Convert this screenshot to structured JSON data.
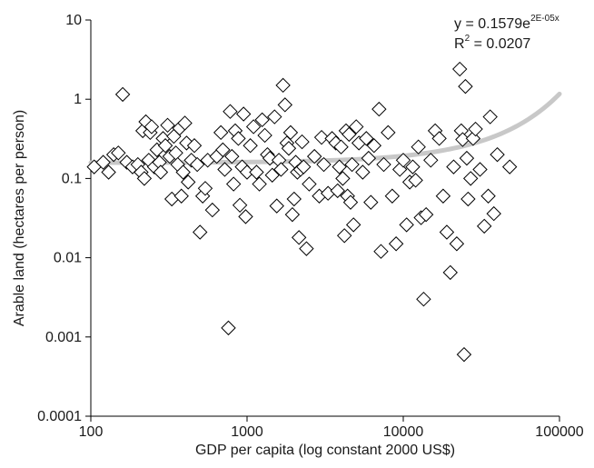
{
  "chart_data": {
    "type": "scatter",
    "title": "",
    "xlabel": "GDP per capita (log constant 2000 US$)",
    "ylabel": "Arable land (hectares per person)",
    "xscale": "log",
    "yscale": "log",
    "xlim": [
      100,
      100000
    ],
    "ylim": [
      0.0001,
      10
    ],
    "grid": false,
    "legend": "none",
    "x_ticks": [
      100,
      1000,
      10000,
      100000
    ],
    "x_tick_labels": [
      "100",
      "1000",
      "10000",
      "100000"
    ],
    "y_ticks": [
      0.0001,
      0.001,
      0.01,
      0.1,
      1,
      10
    ],
    "y_tick_labels": [
      "0.0001",
      "0.001",
      "0.01",
      "0.1",
      "1",
      "10"
    ],
    "annotation": {
      "equation_prefix": "y = 0.1579e",
      "equation_exponent": "2E-05x",
      "r2_prefix": "R",
      "r2_exponent": "2",
      "r2_suffix": " = 0.0207"
    },
    "trendline": {
      "a": 0.1579,
      "b": 2e-05,
      "color": "#c8c8c8"
    },
    "marker": {
      "shape": "diamond",
      "fill": "#ffffff",
      "stroke": "#000000"
    },
    "points": [
      [
        105,
        0.14
      ],
      [
        120,
        0.16
      ],
      [
        130,
        0.12
      ],
      [
        140,
        0.2
      ],
      [
        150,
        0.21
      ],
      [
        160,
        1.15
      ],
      [
        170,
        0.16
      ],
      [
        185,
        0.14
      ],
      [
        200,
        0.15
      ],
      [
        210,
        0.12
      ],
      [
        215,
        0.4
      ],
      [
        220,
        0.1
      ],
      [
        225,
        0.52
      ],
      [
        235,
        0.17
      ],
      [
        240,
        0.38
      ],
      [
        245,
        0.45
      ],
      [
        255,
        0.14
      ],
      [
        265,
        0.23
      ],
      [
        275,
        0.16
      ],
      [
        280,
        0.12
      ],
      [
        290,
        0.32
      ],
      [
        300,
        0.26
      ],
      [
        310,
        0.47
      ],
      [
        320,
        0.19
      ],
      [
        330,
        0.055
      ],
      [
        340,
        0.34
      ],
      [
        350,
        0.21
      ],
      [
        360,
        0.15
      ],
      [
        370,
        0.43
      ],
      [
        380,
        0.06
      ],
      [
        390,
        0.12
      ],
      [
        400,
        0.5
      ],
      [
        410,
        0.28
      ],
      [
        420,
        0.09
      ],
      [
        440,
        0.17
      ],
      [
        460,
        0.26
      ],
      [
        480,
        0.15
      ],
      [
        500,
        0.021
      ],
      [
        520,
        0.06
      ],
      [
        540,
        0.075
      ],
      [
        560,
        0.17
      ],
      [
        600,
        0.04
      ],
      [
        640,
        0.19
      ],
      [
        680,
        0.38
      ],
      [
        700,
        0.23
      ],
      [
        720,
        0.13
      ],
      [
        760,
        0.0013
      ],
      [
        780,
        0.7
      ],
      [
        800,
        0.19
      ],
      [
        820,
        0.085
      ],
      [
        840,
        0.4
      ],
      [
        880,
        0.32
      ],
      [
        900,
        0.046
      ],
      [
        930,
        0.14
      ],
      [
        950,
        0.65
      ],
      [
        980,
        0.033
      ],
      [
        1000,
        0.12
      ],
      [
        1050,
        0.26
      ],
      [
        1100,
        0.45
      ],
      [
        1150,
        0.12
      ],
      [
        1200,
        0.085
      ],
      [
        1250,
        0.55
      ],
      [
        1300,
        0.35
      ],
      [
        1350,
        0.2
      ],
      [
        1400,
        0.18
      ],
      [
        1450,
        0.11
      ],
      [
        1500,
        0.6
      ],
      [
        1550,
        0.045
      ],
      [
        1600,
        0.17
      ],
      [
        1650,
        0.13
      ],
      [
        1700,
        1.5
      ],
      [
        1750,
        0.85
      ],
      [
        1800,
        0.28
      ],
      [
        1850,
        0.24
      ],
      [
        1900,
        0.38
      ],
      [
        1950,
        0.035
      ],
      [
        2000,
        0.055
      ],
      [
        2050,
        0.16
      ],
      [
        2100,
        0.12
      ],
      [
        2150,
        0.018
      ],
      [
        2200,
        0.13
      ],
      [
        2250,
        0.29
      ],
      [
        2300,
        0.14
      ],
      [
        2400,
        0.013
      ],
      [
        2500,
        0.085
      ],
      [
        2700,
        0.19
      ],
      [
        2900,
        0.06
      ],
      [
        3000,
        0.33
      ],
      [
        3100,
        0.15
      ],
      [
        3300,
        0.065
      ],
      [
        3500,
        0.32
      ],
      [
        3700,
        0.28
      ],
      [
        3800,
        0.07
      ],
      [
        3900,
        0.14
      ],
      [
        4000,
        0.25
      ],
      [
        4100,
        0.1
      ],
      [
        4200,
        0.019
      ],
      [
        4300,
        0.4
      ],
      [
        4400,
        0.06
      ],
      [
        4500,
        0.36
      ],
      [
        4600,
        0.05
      ],
      [
        4700,
        0.15
      ],
      [
        4800,
        0.026
      ],
      [
        5000,
        0.45
      ],
      [
        5200,
        0.28
      ],
      [
        5500,
        0.12
      ],
      [
        5800,
        0.32
      ],
      [
        6000,
        0.18
      ],
      [
        6200,
        0.05
      ],
      [
        6500,
        0.26
      ],
      [
        7000,
        0.75
      ],
      [
        7200,
        0.012
      ],
      [
        7500,
        0.15
      ],
      [
        8000,
        0.38
      ],
      [
        8500,
        0.06
      ],
      [
        9000,
        0.015
      ],
      [
        9500,
        0.13
      ],
      [
        10000,
        0.17
      ],
      [
        10500,
        0.026
      ],
      [
        11000,
        0.09
      ],
      [
        11500,
        0.14
      ],
      [
        12000,
        0.095
      ],
      [
        12500,
        0.25
      ],
      [
        13000,
        0.032
      ],
      [
        13500,
        0.003
      ],
      [
        14000,
        0.035
      ],
      [
        15000,
        0.17
      ],
      [
        16000,
        0.4
      ],
      [
        17000,
        0.32
      ],
      [
        18000,
        0.06
      ],
      [
        19000,
        0.021
      ],
      [
        20000,
        0.0065
      ],
      [
        21000,
        0.14
      ],
      [
        22000,
        0.015
      ],
      [
        23000,
        2.4
      ],
      [
        23500,
        0.4
      ],
      [
        24000,
        0.31
      ],
      [
        24500,
        0.0006
      ],
      [
        25000,
        1.45
      ],
      [
        25500,
        0.18
      ],
      [
        26000,
        0.055
      ],
      [
        27000,
        0.1
      ],
      [
        28000,
        0.32
      ],
      [
        29000,
        0.42
      ],
      [
        31000,
        0.13
      ],
      [
        33000,
        0.025
      ],
      [
        35000,
        0.06
      ],
      [
        36000,
        0.6
      ],
      [
        38000,
        0.036
      ],
      [
        40000,
        0.2
      ],
      [
        48000,
        0.14
      ]
    ]
  }
}
